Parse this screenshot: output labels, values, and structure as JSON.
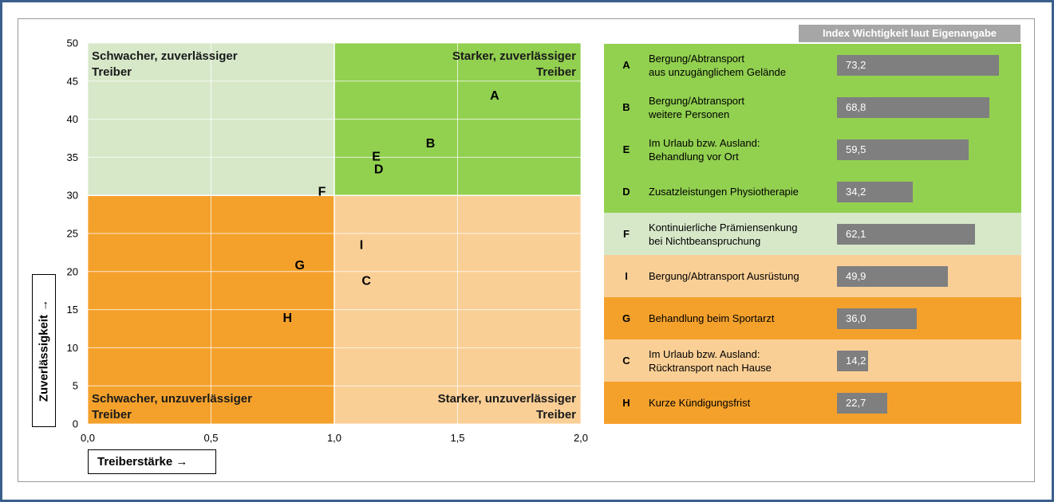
{
  "colors": {
    "strong_reliable": "#92d050",
    "weak_reliable": "#d7e8c9",
    "weak_unreliable": "#f4a12c",
    "strong_unreliable": "#facf96",
    "bar": "#7f7f7f",
    "header_bg": "#a6a6a6"
  },
  "chart_data": {
    "type": "scatter",
    "xlabel": "Treiberstärke",
    "ylabel": "Zuverlässigkeit",
    "xlim": [
      0,
      2.0
    ],
    "ylim": [
      0,
      50
    ],
    "x_ticks": [
      "0,0",
      "0,5",
      "1,0",
      "1,5",
      "2,0"
    ],
    "y_ticks": [
      "0",
      "5",
      "10",
      "15",
      "20",
      "25",
      "30",
      "35",
      "40",
      "45",
      "50"
    ],
    "grid": true,
    "quadrant_split": {
      "x": 1.0,
      "y": 30
    },
    "quadrants": [
      {
        "label": "Schwacher, zuverlässiger\nTreiber",
        "position": "top-left",
        "color": "#d7e8c9"
      },
      {
        "label": "Starker, zuverlässiger\nTreiber",
        "position": "top-right",
        "color": "#92d050"
      },
      {
        "label": "Schwacher, unzuverlässiger\nTreiber",
        "position": "bottom-left",
        "color": "#f4a12c"
      },
      {
        "label": "Starker, unzuverlässiger\nTreiber",
        "position": "bottom-right",
        "color": "#facf96"
      }
    ],
    "points": [
      {
        "label": "A",
        "x": 1.65,
        "y": 43.1
      },
      {
        "label": "B",
        "x": 1.39,
        "y": 36.8
      },
      {
        "label": "E",
        "x": 1.17,
        "y": 35.1
      },
      {
        "label": "D",
        "x": 1.18,
        "y": 33.4
      },
      {
        "label": "F",
        "x": 0.95,
        "y": 30.5
      },
      {
        "label": "I",
        "x": 1.11,
        "y": 23.5
      },
      {
        "label": "G",
        "x": 0.86,
        "y": 20.8
      },
      {
        "label": "C",
        "x": 1.13,
        "y": 18.8
      },
      {
        "label": "H",
        "x": 0.81,
        "y": 13.9
      }
    ],
    "bar_panel": {
      "type": "bar",
      "title": "Index Wichtigkeit laut Eigenangabe",
      "xlim": [
        0,
        100
      ],
      "categories": [
        "A",
        "B",
        "E",
        "D",
        "F",
        "I",
        "G",
        "C",
        "H"
      ],
      "values": [
        73.2,
        68.8,
        59.5,
        34.2,
        62.1,
        49.9,
        36.0,
        14.2,
        22.7
      ],
      "value_labels": [
        "73,2",
        "68,8",
        "59,5",
        "34,2",
        "62,1",
        "49,9",
        "36,0",
        "14,2",
        "22,7"
      ],
      "rows": [
        {
          "key": "A",
          "name": "Bergung/Abtransport\naus unzugänglichem  Gelände",
          "value": 73.2,
          "value_label": "73,2",
          "color": "#92d050"
        },
        {
          "key": "B",
          "name": "Bergung/Abtransport\nweitere  Personen",
          "value": 68.8,
          "value_label": "68,8",
          "color": "#92d050"
        },
        {
          "key": "E",
          "name": "Im Urlaub  bzw. Ausland:\nBehandlung  vor  Ort",
          "value": 59.5,
          "value_label": "59,5",
          "color": "#92d050"
        },
        {
          "key": "D",
          "name": "Zusatzleistungen  Physiotherapie",
          "value": 34.2,
          "value_label": "34,2",
          "color": "#92d050"
        },
        {
          "key": "F",
          "name": "Kontinuierliche  Prämiensenkung\nbei Nichtbeanspruchung",
          "value": 62.1,
          "value_label": "62,1",
          "color": "#d7e8c9"
        },
        {
          "key": "I",
          "name": "Bergung/Abtransport  Ausrüstung",
          "value": 49.9,
          "value_label": "49,9",
          "color": "#facf96"
        },
        {
          "key": "G",
          "name": "Behandlung  beim  Sportarzt",
          "value": 36.0,
          "value_label": "36,0",
          "color": "#f4a12c"
        },
        {
          "key": "C",
          "name": "Im Urlaub  bzw. Ausland:\nRücktransport  nach Hause",
          "value": 14.2,
          "value_label": "14,2",
          "color": "#facf96"
        },
        {
          "key": "H",
          "name": "Kurze  Kündigungsfrist",
          "value": 22.7,
          "value_label": "22,7",
          "color": "#f4a12c"
        }
      ]
    }
  }
}
